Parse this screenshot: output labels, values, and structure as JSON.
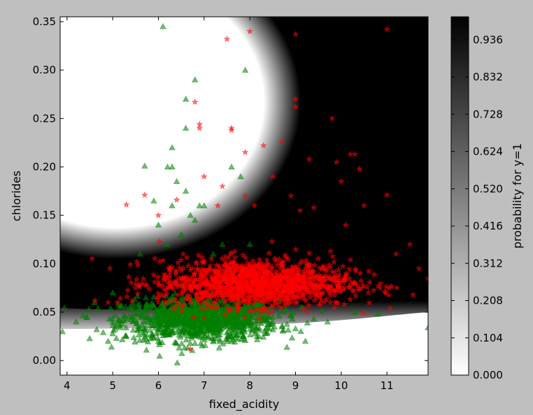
{
  "chart_data": {
    "type": "scatter",
    "title": "",
    "xlabel": "fixed_acidity",
    "ylabel": "chlorides",
    "xlim": [
      3.85,
      11.9
    ],
    "ylim": [
      -0.015,
      0.355
    ],
    "xticks": [
      "4",
      "5",
      "6",
      "7",
      "8",
      "9",
      "10",
      "11"
    ],
    "yticks": [
      "0.00",
      "0.05",
      "0.10",
      "0.15",
      "0.20",
      "0.25",
      "0.30",
      "0.35"
    ],
    "background": "probability heatmap (black = high, white = low)",
    "grid": false,
    "colorbar": {
      "label": "probability for y=1",
      "range": [
        0,
        1
      ],
      "ticks": [
        "0.000",
        "0.104",
        "0.208",
        "0.312",
        "0.416",
        "0.520",
        "0.624",
        "0.728",
        "0.832",
        "0.936"
      ]
    },
    "series": [
      {
        "marker": "triangle",
        "color": "#008000",
        "points": [
          [
            6.1,
            0.345
          ],
          [
            6.8,
            0.29
          ],
          [
            7.9,
            0.3
          ],
          [
            7.8,
            0.19
          ],
          [
            7.6,
            0.2
          ],
          [
            6.6,
            0.27
          ],
          [
            6.6,
            0.24
          ],
          [
            6.3,
            0.22
          ],
          [
            6.3,
            0.2
          ],
          [
            5.7,
            0.201
          ],
          [
            6.4,
            0.185
          ],
          [
            6.2,
            0.2
          ],
          [
            6.6,
            0.175
          ],
          [
            7.0,
            0.16
          ],
          [
            6.7,
            0.15
          ],
          [
            6.0,
            0.14
          ],
          [
            6.3,
            0.16
          ],
          [
            5.9,
            0.165
          ],
          [
            6.8,
            0.145
          ],
          [
            6.9,
            0.16
          ],
          [
            6.5,
            0.13
          ],
          [
            7.4,
            0.12
          ],
          [
            7.2,
            0.11
          ],
          [
            8.0,
            0.12
          ],
          [
            6.2,
            0.12
          ],
          [
            5.6,
            0.11
          ],
          [
            5.0,
            0.07
          ],
          [
            4.6,
            0.06
          ],
          [
            4.2,
            0.04
          ],
          [
            3.9,
            0.03
          ],
          [
            11.9,
            0.034
          ],
          [
            10.8,
            0.048
          ],
          [
            10.3,
            0.05
          ],
          [
            9.7,
            0.04
          ],
          [
            9.4,
            0.043
          ],
          [
            9.0,
            0.033
          ],
          [
            8.5,
            0.045
          ],
          [
            8.8,
            0.06
          ],
          [
            4.9,
            0.02
          ],
          [
            5.3,
            0.025
          ],
          [
            6.0,
            0.02
          ],
          [
            6.8,
            0.018
          ],
          [
            7.6,
            0.02
          ],
          [
            8.2,
            0.025
          ]
        ],
        "cluster": {
          "x_mean": 6.9,
          "x_sd": 0.85,
          "y_mean": 0.042,
          "y_sd": 0.011,
          "count": 1100
        }
      },
      {
        "marker": "star",
        "color": "#ff0000",
        "points": [
          [
            7.5,
            0.332
          ],
          [
            8.0,
            0.34
          ],
          [
            9.0,
            0.337
          ],
          [
            11.0,
            0.342
          ],
          [
            9.0,
            0.27
          ],
          [
            9.0,
            0.262
          ],
          [
            9.8,
            0.25
          ],
          [
            6.8,
            0.267
          ],
          [
            6.9,
            0.244
          ],
          [
            6.9,
            0.24
          ],
          [
            7.6,
            0.238
          ],
          [
            7.6,
            0.24
          ],
          [
            7.9,
            0.215
          ],
          [
            8.7,
            0.226
          ],
          [
            8.3,
            0.222
          ],
          [
            9.3,
            0.208
          ],
          [
            9.9,
            0.205
          ],
          [
            10.2,
            0.213
          ],
          [
            10.3,
            0.213
          ],
          [
            10.4,
            0.198
          ],
          [
            10.0,
            0.185
          ],
          [
            7.0,
            0.19
          ],
          [
            7.4,
            0.18
          ],
          [
            7.9,
            0.17
          ],
          [
            8.5,
            0.19
          ],
          [
            8.9,
            0.17
          ],
          [
            9.4,
            0.158
          ],
          [
            10.1,
            0.14
          ],
          [
            10.5,
            0.16
          ],
          [
            11.0,
            0.171
          ],
          [
            5.3,
            0.161
          ],
          [
            5.7,
            0.171
          ],
          [
            6.4,
            0.166
          ],
          [
            6.0,
            0.15
          ],
          [
            7.3,
            0.16
          ],
          [
            8.1,
            0.16
          ],
          [
            9.1,
            0.155
          ],
          [
            11.5,
            0.12
          ],
          [
            11.2,
            0.11
          ],
          [
            11.7,
            0.095
          ],
          [
            11.9,
            0.085
          ],
          [
            12.0,
            0.09
          ],
          [
            6.7,
            0.012
          ],
          [
            4.9,
            0.06
          ],
          [
            5.1,
            0.06
          ],
          [
            5.5,
            0.075
          ]
        ],
        "cluster": {
          "x_mean": 8.1,
          "x_sd": 1.05,
          "y_mean": 0.08,
          "y_sd": 0.012,
          "count": 1400
        }
      }
    ]
  }
}
